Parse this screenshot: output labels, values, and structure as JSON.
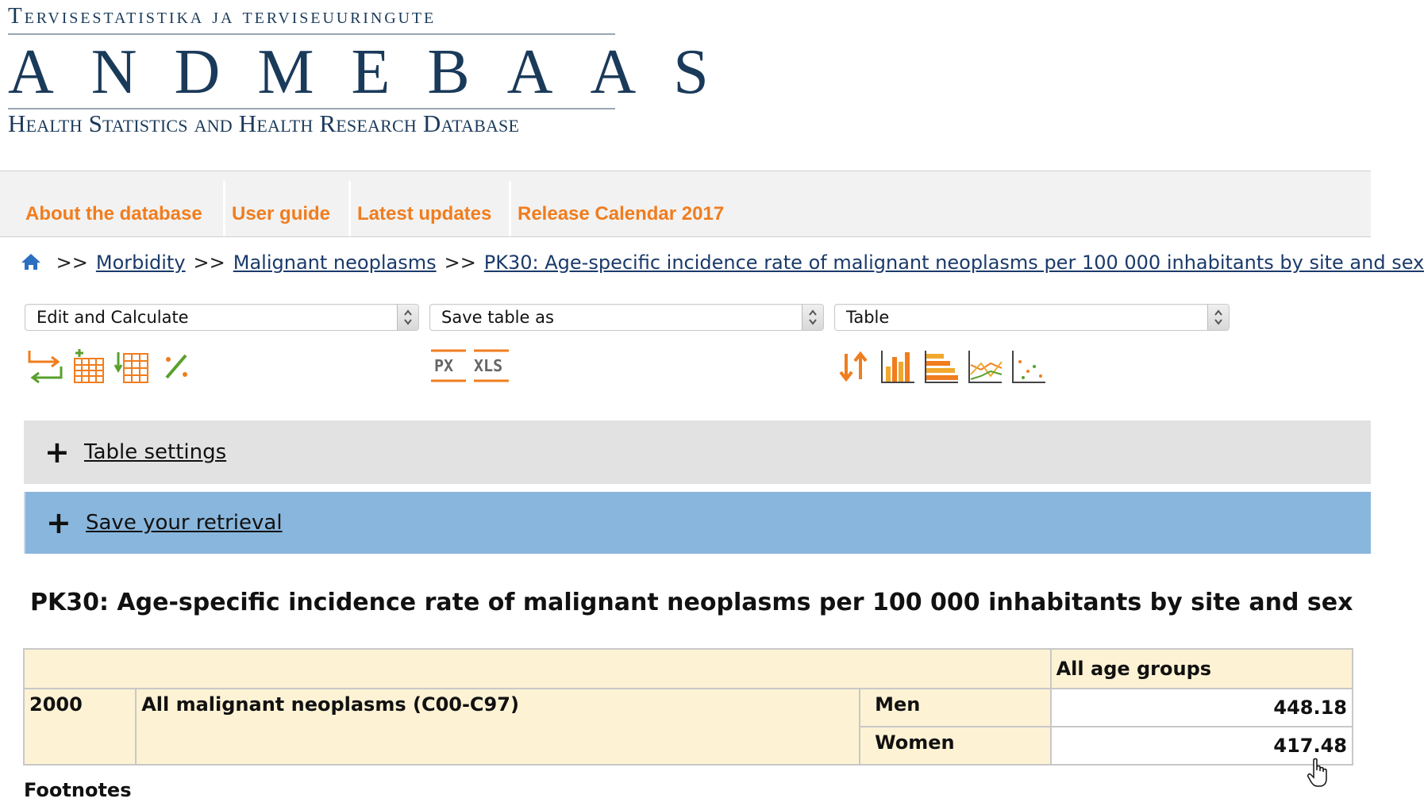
{
  "logo": {
    "line1": "Tervisestatistika ja terviseuuringute",
    "line2": "ANDMEBAAS",
    "line3": "Health Statistics and Health Research Database"
  },
  "nav": {
    "items": [
      {
        "label": "About the database"
      },
      {
        "label": "User guide"
      },
      {
        "label": "Latest updates"
      },
      {
        "label": "Release Calendar 2017"
      }
    ]
  },
  "breadcrumb": {
    "sep": ">>",
    "items": [
      {
        "label": "Morbidity"
      },
      {
        "label": "Malignant neoplasms"
      },
      {
        "label": "PK30: Age-specific incidence rate of malignant neoplasms per 100 000 inhabitants by site and sex"
      }
    ]
  },
  "selects": {
    "edit": "Edit and Calculate",
    "save": "Save table as",
    "view": "Table"
  },
  "toolbar": {
    "edit_icons": [
      "pivot-icon",
      "add-column-icon",
      "sort-column-icon",
      "percent-icon"
    ],
    "save_labels": [
      "PX",
      "XLS"
    ],
    "view_icons": [
      "sort-arrows-icon",
      "bar-chart-icon",
      "horizontal-bar-chart-icon",
      "line-chart-icon",
      "scatter-chart-icon"
    ]
  },
  "panels": {
    "settings": "Table settings",
    "retrieval": "Save your retrieval"
  },
  "table": {
    "title": "PK30: Age-specific incidence rate of malignant neoplasms per 100 000 inhabitants by site and sex",
    "column_header": "All age groups",
    "year": "2000",
    "site": "All malignant neoplasms (C00-C97)",
    "rows": [
      {
        "sex": "Men",
        "value": "448.18"
      },
      {
        "sex": "Women",
        "value": "417.48"
      }
    ]
  },
  "footnotes": {
    "label": "Footnotes"
  },
  "colors": {
    "nav_text": "#f07d1e",
    "logo_text": "#1a3a5a",
    "retrieval_panel": "#89b6dc",
    "settings_panel": "#e2e2e2",
    "table_header": "#fdf2d4"
  }
}
